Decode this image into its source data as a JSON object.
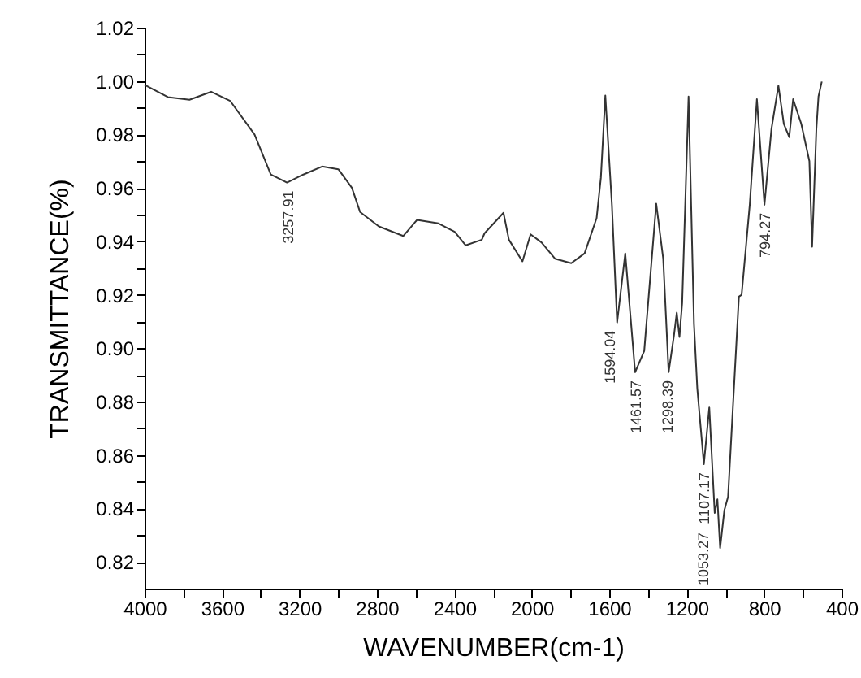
{
  "chart_data": {
    "type": "line",
    "xlabel": "WAVENUMBER(cm-1)",
    "ylabel": "TRANSMITTANCE(%)",
    "x": [
      4000,
      3880,
      3768,
      3656,
      3558,
      3432,
      3348,
      3264,
      3180,
      3083,
      2999,
      2929,
      2887,
      2790,
      2664,
      2593,
      2482,
      2398,
      2341,
      2258,
      2244,
      2146,
      2118,
      2048,
      2006,
      1950,
      1880,
      1796,
      1727,
      1665,
      1643,
      1620,
      1586,
      1559,
      1517,
      1466,
      1419,
      1357,
      1321,
      1293,
      1265,
      1251,
      1237,
      1223,
      1190,
      1162,
      1145,
      1111,
      1083,
      1055,
      1041,
      1027,
      1005,
      986,
      930,
      916,
      874,
      837,
      798,
      762,
      726,
      698,
      670,
      650,
      608,
      566,
      552,
      530,
      519,
      502
    ],
    "series": [
      {
        "color": "#333333",
        "values": [
          0.9986,
          0.994,
          0.993,
          0.996,
          0.9926,
          0.98,
          0.965,
          0.962,
          0.965,
          0.968,
          0.967,
          0.96,
          0.951,
          0.9456,
          0.942,
          0.948,
          0.9467,
          0.9436,
          0.9385,
          0.9406,
          0.943,
          0.9507,
          0.9406,
          0.9325,
          0.9426,
          0.9396,
          0.9335,
          0.9318,
          0.9355,
          0.9487,
          0.9638,
          0.9946,
          0.9537,
          0.9096,
          0.9355,
          0.891,
          0.899,
          0.9541,
          0.9335,
          0.891,
          0.905,
          0.9133,
          0.9042,
          0.917,
          0.9942,
          0.909,
          0.885,
          0.8566,
          0.8778,
          0.8383,
          0.8434,
          0.8252,
          0.8394,
          0.8444,
          0.9193,
          0.92,
          0.9537,
          0.9932,
          0.9537,
          0.982,
          0.9983,
          0.984,
          0.979,
          0.9932,
          0.984,
          0.97,
          0.938,
          0.982,
          0.9942,
          0.9998
        ]
      }
    ],
    "xlim": [
      4000,
      400
    ],
    "xticks": [
      4000,
      {
        "value": 3800,
        "label": null
      },
      3600,
      {
        "value": 3400,
        "label": null
      },
      3200,
      {
        "value": 3000,
        "label": null
      },
      2800,
      {
        "value": 2600,
        "label": null
      },
      2400,
      {
        "value": 2200,
        "label": null
      },
      2000,
      {
        "value": 1800,
        "label": null
      },
      1600,
      {
        "value": 1400,
        "label": null
      },
      1200,
      {
        "value": 1000,
        "label": null
      },
      800,
      {
        "value": 600,
        "label": null
      },
      400
    ],
    "ylim": [
      0.81,
      1.02
    ],
    "yticks": [
      0.82,
      {
        "value": 0.83,
        "label": null
      },
      0.84,
      {
        "value": 0.85,
        "label": null
      },
      0.86,
      {
        "value": 0.87,
        "label": null
      },
      0.88,
      {
        "value": 0.89,
        "label": null
      },
      {
        "value": 0.9,
        "label": "0.90"
      },
      {
        "value": 0.91,
        "label": null
      },
      0.92,
      {
        "value": 0.93,
        "label": null
      },
      0.94,
      {
        "value": 0.95,
        "label": null
      },
      0.96,
      {
        "value": 0.97,
        "label": null
      },
      0.98,
      {
        "value": 0.99,
        "label": null
      },
      {
        "value": 1,
        "label": "1.00"
      },
      {
        "value": 1.01,
        "label": null
      },
      1.02
    ],
    "grid": false,
    "line_style": "solid",
    "annotations": [
      {
        "text": "3257.91",
        "x": 3257.91,
        "y": 0.962
      },
      {
        "text": "1594.04",
        "x": 1594.04,
        "y": 0.9096
      },
      {
        "text": "1461.57",
        "x": 1461.57,
        "y": 0.891
      },
      {
        "text": "1298.39",
        "x": 1298.39,
        "y": 0.891
      },
      {
        "text": "1107.17",
        "x": 1107.17,
        "y": 0.8566
      },
      {
        "text": "1053.27",
        "x": 1053.27,
        "y": 0.8252
      },
      {
        "text": "794.27",
        "x": 794.27,
        "y": 0.9537
      }
    ]
  }
}
